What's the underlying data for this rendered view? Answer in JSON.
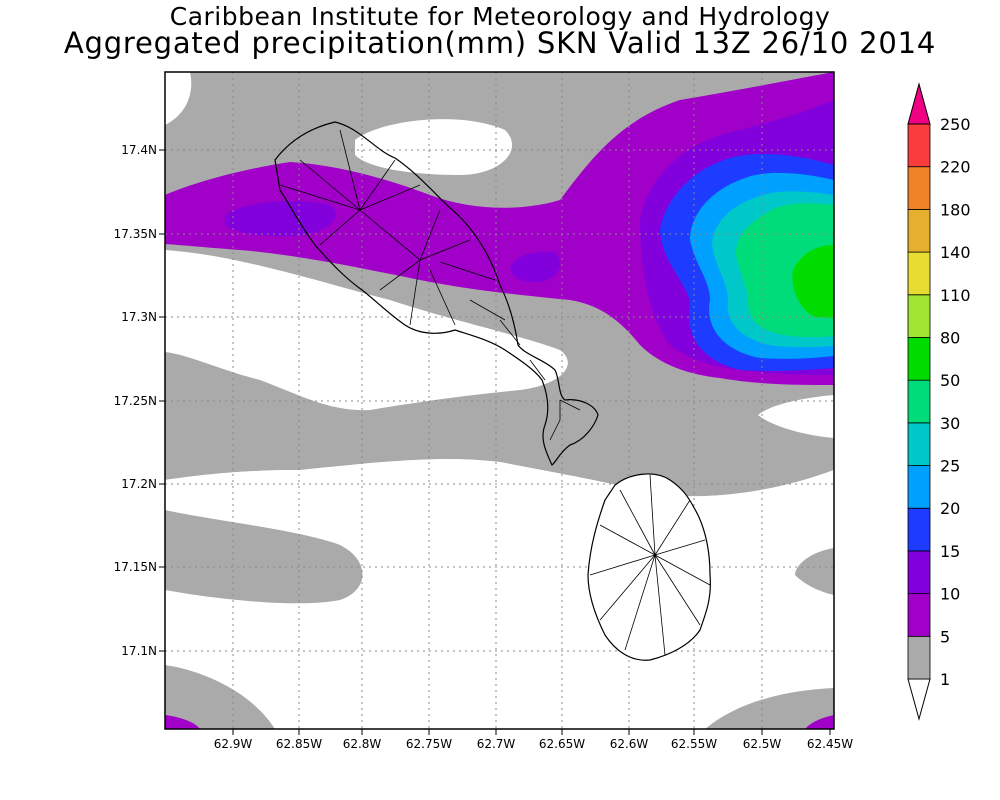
{
  "title_line1": "Caribbean Institute for Meteorology and Hydrology",
  "title_line2": "Aggregated precipitation(mm) SKN Valid 13Z 26/10 2014",
  "axes": {
    "x_ticks": [
      "62.9W",
      "62.85W",
      "62.8W",
      "62.75W",
      "62.7W",
      "62.65W",
      "62.6W",
      "62.55W",
      "62.5W",
      "62.45W"
    ],
    "y_ticks": [
      "17.4N",
      "17.35N",
      "17.3N",
      "17.25N",
      "17.2N",
      "17.15N",
      "17.1N"
    ]
  },
  "colorbar": {
    "levels": [
      "1",
      "5",
      "10",
      "15",
      "20",
      "25",
      "30",
      "50",
      "80",
      "110",
      "140",
      "180",
      "220",
      "250"
    ],
    "colors": [
      "#aaaaaa",
      "#a000c8",
      "#8200dc",
      "#1e3cff",
      "#00a0ff",
      "#00c8c8",
      "#00dc7a",
      "#00dc00",
      "#a0e632",
      "#e6dc32",
      "#e6af2d",
      "#f08228",
      "#fa3c3c",
      "#f00082"
    ],
    "below_color": "#ffffff"
  },
  "colors": {
    "light_rain": "#aaaaaa",
    "moderate": "#a000c8",
    "heavy": "#8200dc"
  }
}
